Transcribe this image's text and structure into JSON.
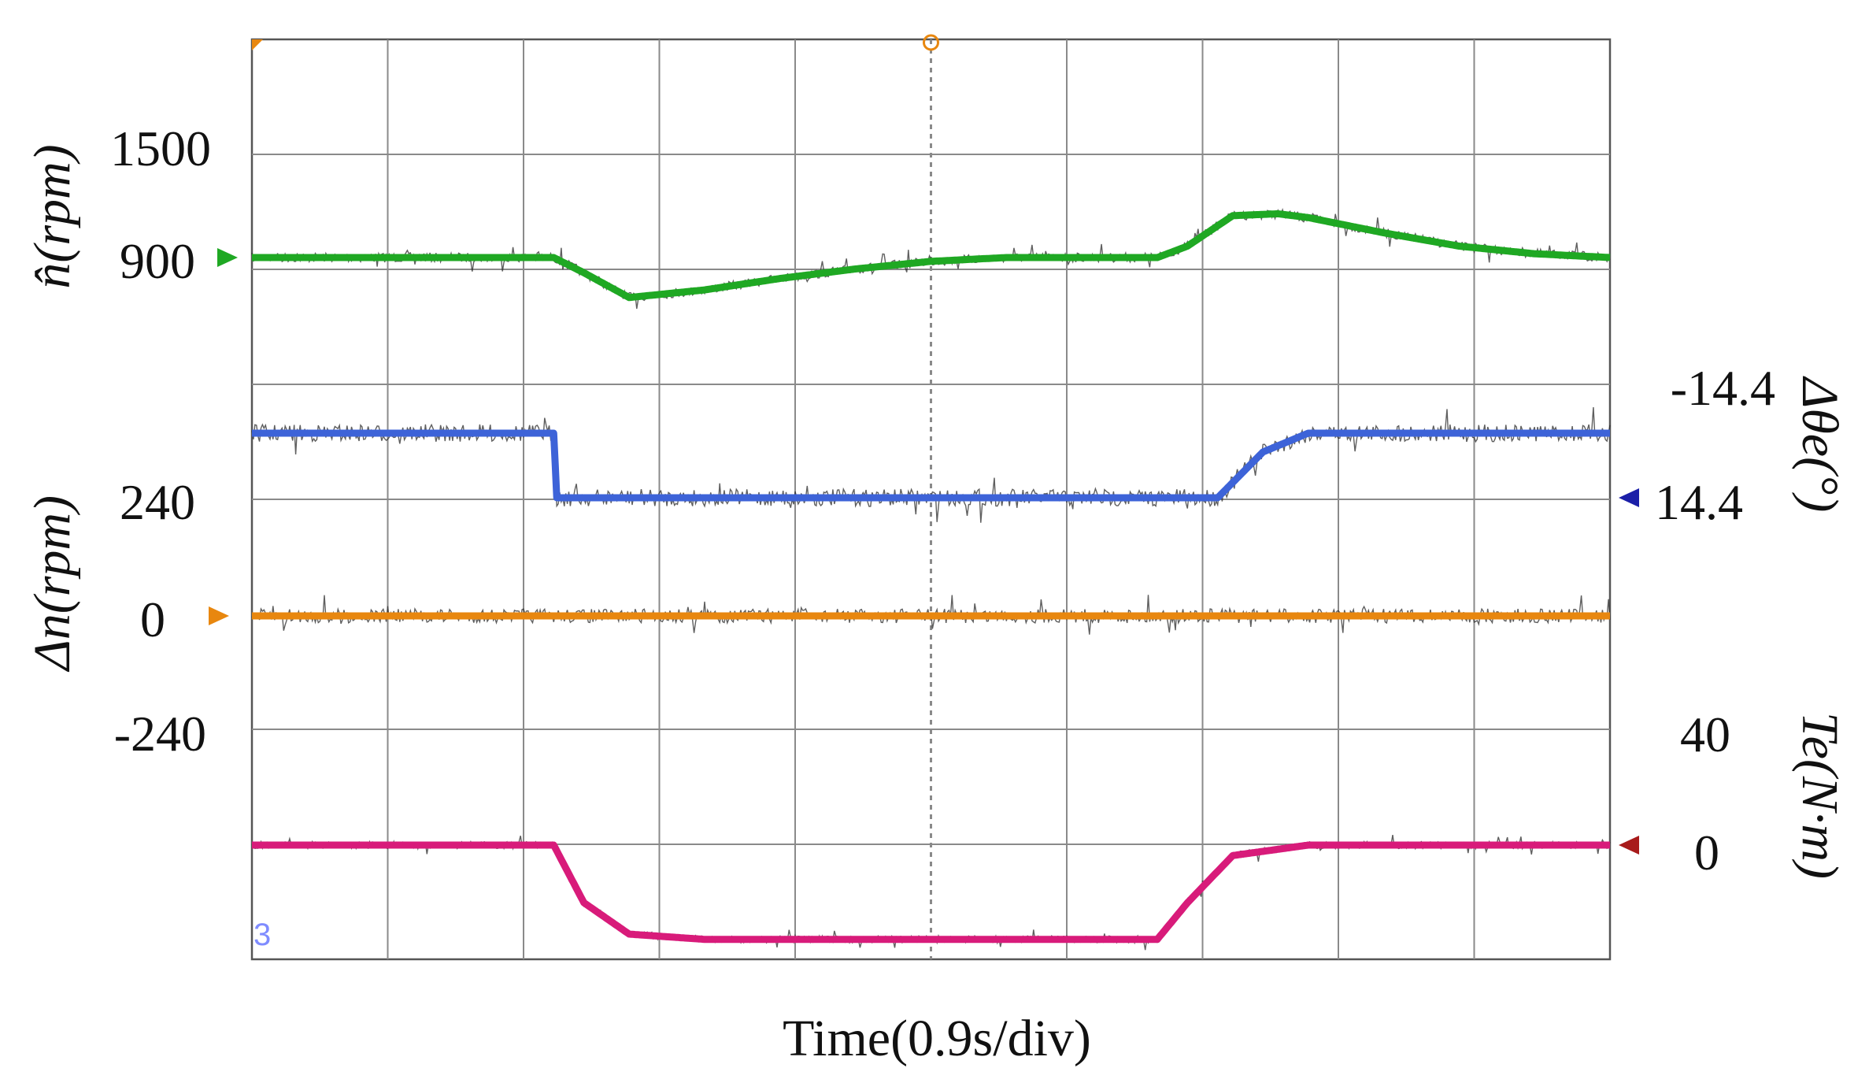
{
  "chart_data": {
    "type": "line",
    "xlabel": "Time(0.9s/div)",
    "grid": true,
    "x_divisions": 10,
    "y_divisions": 8,
    "time_per_div_s": 0.9,
    "x_range_s": [
      0,
      9.0
    ],
    "channel_marker": "3",
    "colors": {
      "speed": "#1fa823",
      "angle": "#3d63d8",
      "speed_error": "#e8870f",
      "torque": "#d81b7a",
      "grid": "#8a8a8a"
    },
    "axes": {
      "speed": {
        "label": "n̂(rpm)",
        "side": "left",
        "ticks": [
          "1500",
          "900"
        ],
        "tick_values": [
          1500,
          900
        ]
      },
      "speed_error": {
        "label": "Δn(rpm)",
        "side": "left",
        "ticks": [
          "240",
          "0",
          "-240"
        ],
        "tick_values": [
          240,
          0,
          -240
        ]
      },
      "angle": {
        "label": "Δθe(°)",
        "side": "right",
        "ticks": [
          "-14.4",
          "14.4"
        ],
        "tick_values": [
          -14.4,
          14.4
        ]
      },
      "torque": {
        "label": "Te(N·m)",
        "side": "right",
        "ticks": [
          "40",
          "0"
        ],
        "tick_values": [
          40,
          0
        ]
      }
    },
    "series": [
      {
        "name": "n̂(rpm)",
        "key": "speed",
        "x": [
          0,
          2.0,
          2.2,
          2.5,
          3.0,
          3.5,
          4.0,
          4.5,
          5.0,
          5.5,
          6.0,
          6.2,
          6.5,
          6.8,
          7.0,
          7.5,
          8.0,
          8.5,
          9.0
        ],
        "values": [
          900,
          900,
          820,
          690,
          730,
          790,
          840,
          880,
          900,
          900,
          900,
          960,
          1120,
          1130,
          1110,
          1030,
          960,
          920,
          900
        ]
      },
      {
        "name": "Δθe(°)",
        "key": "angle",
        "x": [
          0,
          2.0,
          2.02,
          4.0,
          6.0,
          6.4,
          6.7,
          7.0,
          9.0
        ],
        "values": [
          -14.4,
          -14.4,
          14.4,
          14.4,
          14.4,
          14.4,
          -6,
          -14.4,
          -14.4
        ]
      },
      {
        "name": "Δn(rpm)",
        "key": "speed_error",
        "x": [
          0,
          9.0
        ],
        "values": [
          0,
          0
        ]
      },
      {
        "name": "Te(N·m)",
        "key": "torque",
        "x": [
          0,
          2.0,
          2.2,
          2.5,
          3.0,
          6.0,
          6.2,
          6.5,
          7.0,
          9.0
        ],
        "values": [
          0,
          0,
          22,
          34,
          36,
          36,
          22,
          4,
          0,
          0
        ]
      }
    ]
  }
}
